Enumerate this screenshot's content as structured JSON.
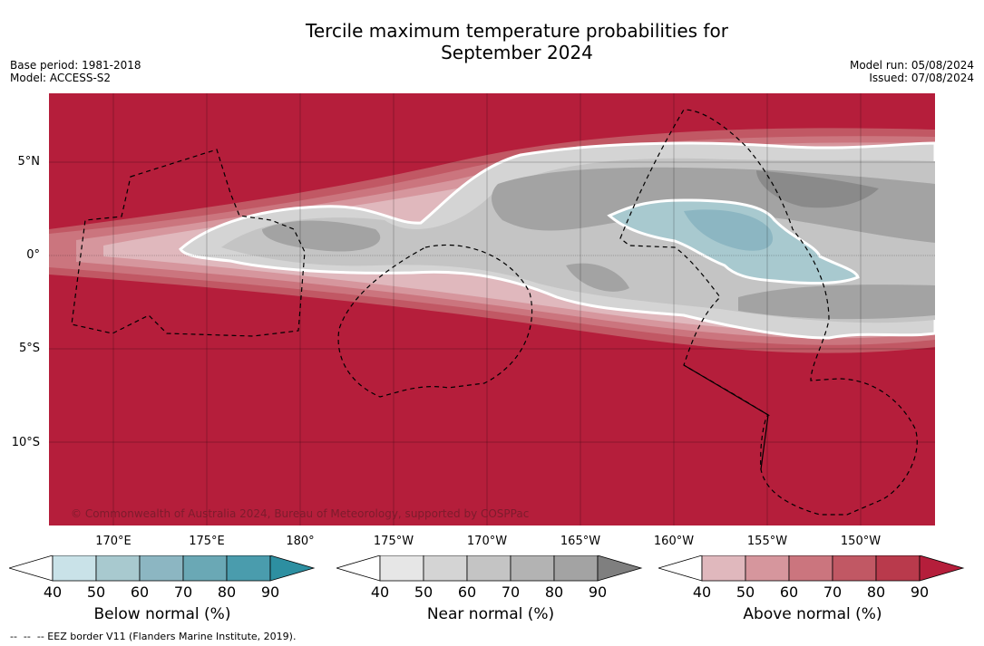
{
  "title_line1": "Tercile maximum temperature probabilities for",
  "title_line2": "September 2024",
  "base_period": "Base period: 1981-2018",
  "model": "Model: ACCESS-S2",
  "model_run": "Model run: 05/08/2024",
  "issued": "Issued: 07/08/2024",
  "copyright": "© Commonwealth of Australia 2024, Bureau of Meteorology, supported by COSPPac",
  "lat_labels": [
    "5°N",
    "0°",
    "5°S",
    "10°S"
  ],
  "lon_labels": [
    "170°E",
    "175°E",
    "180°",
    "175°W",
    "170°W",
    "165°W",
    "160°W",
    "155°W",
    "150°W"
  ],
  "colorbars": [
    {
      "name": "Below normal (%)",
      "ticks": [
        "40",
        "50",
        "60",
        "70",
        "80",
        "90"
      ],
      "colors": [
        "#ffffff",
        "#c9e2e8",
        "#a8c9cf",
        "#8cb6c2",
        "#6aa8b5",
        "#4a9cad",
        "#2d8fa1"
      ]
    },
    {
      "name": "Near normal (%)",
      "ticks": [
        "40",
        "50",
        "60",
        "70",
        "80",
        "90"
      ],
      "colors": [
        "#ffffff",
        "#e6e6e6",
        "#d4d4d4",
        "#c4c4c4",
        "#b3b3b3",
        "#a3a3a3",
        "#7f7f7f"
      ]
    },
    {
      "name": "Above normal (%)",
      "ticks": [
        "40",
        "50",
        "60",
        "70",
        "80",
        "90"
      ],
      "colors": [
        "#ffffff",
        "#e0b8bd",
        "#d6969d",
        "#cb757e",
        "#c15864",
        "#b93a4c",
        "#b51e3b"
      ]
    }
  ],
  "footer": "--  --  -- EEZ border V11 (Flanders Marine Institute, 2019)."
}
